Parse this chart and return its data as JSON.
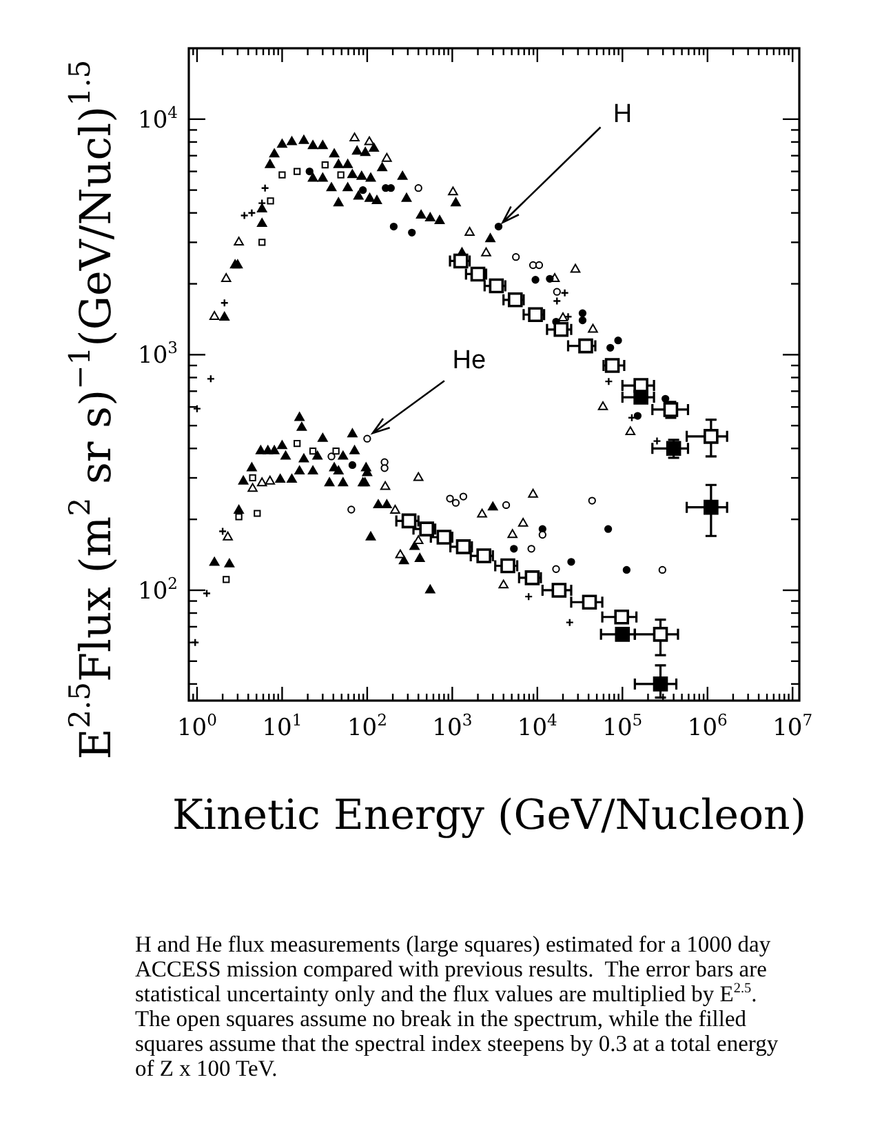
{
  "chart_data": {
    "type": "scatter",
    "xlabel": "Kinetic Energy (GeV/Nucleon)",
    "ylabel": "E$^{2.5}$Flux (m$^{2}$ sr s)$^{−1}$(GeV/Nucl)$^{1.5}$",
    "log": "xy",
    "xlim": [
      0.8,
      12000000
    ],
    "ylim": [
      34,
      20000
    ],
    "xticks": [
      {
        "value": 0.9,
        "label": null
      },
      {
        "value": 1,
        "label": "10$^{0}$"
      },
      {
        "value": 2,
        "label": null
      },
      {
        "value": 3,
        "label": null
      },
      {
        "value": 4,
        "label": null
      },
      {
        "value": 5,
        "label": null
      },
      {
        "value": 6,
        "label": null
      },
      {
        "value": 7,
        "label": null
      },
      {
        "value": 8,
        "label": null
      },
      {
        "value": 9,
        "label": null
      },
      {
        "value": 10,
        "label": "10$^{1}$"
      },
      {
        "value": 20,
        "label": null
      },
      {
        "value": 30,
        "label": null
      },
      {
        "value": 40,
        "label": null
      },
      {
        "value": 50,
        "label": null
      },
      {
        "value": 60,
        "label": null
      },
      {
        "value": 70,
        "label": null
      },
      {
        "value": 80,
        "label": null
      },
      {
        "value": 90,
        "label": null
      },
      {
        "value": 100,
        "label": "10$^{2}$"
      },
      {
        "value": 200,
        "label": null
      },
      {
        "value": 300,
        "label": null
      },
      {
        "value": 400,
        "label": null
      },
      {
        "value": 500,
        "label": null
      },
      {
        "value": 600,
        "label": null
      },
      {
        "value": 700,
        "label": null
      },
      {
        "value": 800,
        "label": null
      },
      {
        "value": 900,
        "label": null
      },
      {
        "value": 1000,
        "label": "10$^{3}$"
      },
      {
        "value": 2000,
        "label": null
      },
      {
        "value": 3000,
        "label": null
      },
      {
        "value": 4000,
        "label": null
      },
      {
        "value": 5000,
        "label": null
      },
      {
        "value": 6000,
        "label": null
      },
      {
        "value": 7000,
        "label": null
      },
      {
        "value": 8000,
        "label": null
      },
      {
        "value": 9000,
        "label": null
      },
      {
        "value": 10000,
        "label": "10$^{4}$"
      },
      {
        "value": 20000,
        "label": null
      },
      {
        "value": 30000,
        "label": null
      },
      {
        "value": 40000,
        "label": null
      },
      {
        "value": 50000,
        "label": null
      },
      {
        "value": 60000,
        "label": null
      },
      {
        "value": 70000,
        "label": null
      },
      {
        "value": 80000,
        "label": null
      },
      {
        "value": 90000,
        "label": null
      },
      {
        "value": 100000,
        "label": "10$^{5}$"
      },
      {
        "value": 200000,
        "label": null
      },
      {
        "value": 300000,
        "label": null
      },
      {
        "value": 400000,
        "label": null
      },
      {
        "value": 500000,
        "label": null
      },
      {
        "value": 600000,
        "label": null
      },
      {
        "value": 700000,
        "label": null
      },
      {
        "value": 800000,
        "label": null
      },
      {
        "value": 900000,
        "label": null
      },
      {
        "value": 1000000,
        "label": "10$^{6}$"
      },
      {
        "value": 2000000,
        "label": null
      },
      {
        "value": 3000000,
        "label": null
      },
      {
        "value": 4000000,
        "label": null
      },
      {
        "value": 5000000,
        "label": null
      },
      {
        "value": 6000000,
        "label": null
      },
      {
        "value": 7000000,
        "label": null
      },
      {
        "value": 8000000,
        "label": null
      },
      {
        "value": 9000000,
        "label": null
      },
      {
        "value": 10000000,
        "label": "10$^{7}$"
      }
    ],
    "yticks": [
      {
        "value": 40,
        "label": null
      },
      {
        "value": 50,
        "label": null
      },
      {
        "value": 60,
        "label": null
      },
      {
        "value": 70,
        "label": null
      },
      {
        "value": 80,
        "label": null
      },
      {
        "value": 90,
        "label": null
      },
      {
        "value": 100,
        "label": "10$^{2}$"
      },
      {
        "value": 200,
        "label": null
      },
      {
        "value": 300,
        "label": null
      },
      {
        "value": 400,
        "label": null
      },
      {
        "value": 500,
        "label": null
      },
      {
        "value": 600,
        "label": null
      },
      {
        "value": 700,
        "label": null
      },
      {
        "value": 800,
        "label": null
      },
      {
        "value": 900,
        "label": null
      },
      {
        "value": 1000,
        "label": "10$^{3}$"
      },
      {
        "value": 2000,
        "label": null
      },
      {
        "value": 3000,
        "label": null
      },
      {
        "value": 4000,
        "label": null
      },
      {
        "value": 5000,
        "label": null
      },
      {
        "value": 6000,
        "label": null
      },
      {
        "value": 7000,
        "label": null
      },
      {
        "value": 8000,
        "label": null
      },
      {
        "value": 9000,
        "label": null
      },
      {
        "value": 10000,
        "label": "10$^{4}$"
      }
    ],
    "series": [
      {
        "color": "#000000",
        "marker": "triangle",
        "x": [
          7.2,
          8.1,
          10,
          13,
          18,
          23,
          30,
          41,
          46,
          59,
          67,
          86,
          110,
          260,
          76,
          95,
          120,
          150,
          23,
          30,
          38,
          46,
          59,
          79,
          107,
          130,
          290,
          430,
          550,
          710,
          1100,
          2800,
          1300,
          2.8,
          3.0,
          2.1,
          5.8,
          5.8,
          16,
          17,
          30,
          67,
          5.6,
          6.8,
          8.1,
          10,
          11,
          18,
          26,
          52,
          71,
          41,
          3.5,
          4.4,
          2.4,
          360,
          3000,
          23,
          16,
          46,
          97,
          100,
          94,
          9.5,
          13,
          36,
          52,
          89,
          3.1,
          1.6,
          135,
          170,
          110,
          270,
          415,
          550
        ],
        "values": [
          6400,
          7100,
          7800,
          8000,
          8100,
          7700,
          7700,
          7100,
          6400,
          6400,
          5800,
          5700,
          5600,
          5700,
          7300,
          7200,
          7500,
          6200,
          5600,
          5600,
          5100,
          4400,
          5100,
          4700,
          4600,
          4500,
          4600,
          3900,
          3800,
          3700,
          4400,
          3100,
          2700,
          2400,
          2400,
          1440,
          3600,
          4150,
          540,
          490,
          440,
          460,
          390,
          390,
          390,
          410,
          370,
          360,
          370,
          370,
          390,
          330,
          290,
          330,
          129,
          153,
          225,
          320,
          320,
          320,
          330,
          315,
          285,
          295,
          295,
          285,
          285,
          285,
          218,
          131,
          230,
          230,
          168,
          133,
          136,
          100
        ]
      },
      {
        "color": "#ffffff",
        "marker": "triangle",
        "x": [
          71,
          106,
          170,
          1020,
          1600,
          2500,
          3.1,
          2.2,
          1.6,
          28000,
          16000,
          20000,
          45000,
          59000,
          124000,
          4.5,
          5.8,
          7.2,
          2.3,
          213,
          245,
          400,
          163,
          400,
          2240,
          8900,
          6800,
          5100,
          4000
        ],
        "values": [
          8300,
          8000,
          6800,
          4900,
          3300,
          2700,
          3000,
          2100,
          1450,
          2300,
          2100,
          1430,
          1280,
          600,
          470,
          270,
          285,
          290,
          168,
          218,
          141,
          162,
          275,
          300,
          210,
          255,
          192,
          172,
          105
        ]
      },
      {
        "color": "#000000",
        "marker": "circle",
        "x": [
          21,
          89,
          165,
          190,
          205,
          335,
          3500,
          9500,
          14000,
          34000,
          34000,
          16600,
          89000,
          72000,
          151000,
          320000,
          67,
          11500,
          68000,
          5300,
          25000,
          112000
        ],
        "values": [
          6000,
          5000,
          5100,
          5100,
          3500,
          3300,
          3500,
          2080,
          2100,
          1500,
          1400,
          1380,
          1150,
          1070,
          550,
          650,
          340,
          182,
          182,
          150,
          132,
          122
        ]
      },
      {
        "color": "#ffffff",
        "marker": "circle",
        "x": [
          400,
          5600,
          8900,
          10500,
          17000,
          100,
          160,
          160,
          65,
          940,
          1100,
          1350,
          4300,
          44000,
          11500,
          8500,
          16600,
          295000,
          38
        ],
        "values": [
          5100,
          2600,
          2400,
          2400,
          1850,
          440,
          350,
          330,
          220,
          245,
          235,
          250,
          230,
          240,
          172,
          150,
          123,
          122,
          370
        ]
      },
      {
        "color": "#ffffff",
        "marker": "square",
        "x": [
          5.8,
          7.3,
          10,
          15,
          32,
          49,
          15,
          23,
          43,
          4.5,
          3.1,
          5.1,
          2.2
        ],
        "values": [
          3000,
          4500,
          5800,
          6000,
          6400,
          5800,
          420,
          390,
          390,
          300,
          205,
          212,
          111
        ]
      },
      {
        "color": "#000000",
        "marker": "cross",
        "x": [
          3.6,
          4.4,
          5.8,
          6.3,
          2.1,
          1.45,
          1.0,
          21000,
          17000,
          23000,
          69000,
          129000,
          255000,
          2.0,
          1.3,
          0.95,
          7900,
          24000
        ],
        "values": [
          3900,
          4000,
          4400,
          5100,
          1660,
          790,
          590,
          1830,
          1690,
          1450,
          770,
          540,
          430,
          178,
          97,
          60,
          94,
          73
        ]
      },
      {
        "color": "#ffffff",
        "marker": "square",
        "x": [
          1260,
          2000,
          3300,
          5500,
          9500,
          19000,
          37000,
          76000,
          165000,
          370000,
          1100000,
          310,
          500,
          800,
          1350,
          2350,
          4500,
          8700,
          18000,
          41000,
          98000,
          280000
        ],
        "values": [
          2500,
          2200,
          1960,
          1710,
          1480,
          1280,
          1090,
          900,
          740,
          585,
          450,
          197,
          182,
          168,
          153,
          140,
          127,
          113,
          100,
          89,
          77,
          65
        ],
        "xerrors": [
          [
            940,
            1600
          ],
          [
            1450,
            2500
          ],
          [
            2400,
            4200
          ],
          [
            4000,
            6900
          ],
          [
            6900,
            12000
          ],
          [
            13000,
            25000
          ],
          [
            23000,
            48000
          ],
          [
            60000,
            105000
          ],
          [
            100000,
            235000
          ],
          [
            225000,
            590000
          ],
          [
            570000,
            1700000
          ],
          [
            220,
            400
          ],
          [
            350,
            630
          ],
          [
            560,
            1000
          ],
          [
            950,
            1700
          ],
          [
            1650,
            3000
          ],
          [
            3200,
            5800
          ],
          [
            6100,
            11000
          ],
          [
            11500,
            25000
          ],
          [
            25000,
            58000
          ],
          [
            58000,
            146000
          ],
          [
            140000,
            450000
          ]
        ],
        "errors": [
          null,
          null,
          null,
          null,
          null,
          null,
          null,
          null,
          null,
          [
            540,
            630
          ],
          [
            370,
            530
          ],
          null,
          null,
          null,
          null,
          null,
          null,
          null,
          null,
          null,
          null,
          [
            53,
            75
          ]
        ]
      },
      {
        "color": "#000000",
        "marker": "square",
        "x": [
          165000,
          400000,
          1100000,
          100000,
          280000
        ],
        "values": [
          660,
          400,
          225,
          65,
          40
        ],
        "xerrors": [
          [
            100000,
            235000
          ],
          [
            225000,
            590000
          ],
          [
            570000,
            1700000
          ],
          [
            56000,
            140000
          ],
          [
            140000,
            430000
          ]
        ],
        "errors": [
          null,
          [
            365,
            435
          ],
          [
            170,
            280
          ],
          null,
          [
            35,
            48
          ]
        ]
      }
    ],
    "annotations": [
      {
        "text": "H",
        "x": 3500,
        "y": 3500
      },
      {
        "text": "He",
        "x": 100,
        "y": 440
      },
      "H and He flux measurements (large squares) estimated for a 1000 day ACCESS mission compared with previous results.  The error bars are statistical uncertainty only and the flux values are multiplied by E$^{2.5}$.  The open squares assume no break in the spectrum, while the filled squares assume that the spectral index steepens by 0.3 at a total energy of Z x 100 TeV."
    ]
  }
}
